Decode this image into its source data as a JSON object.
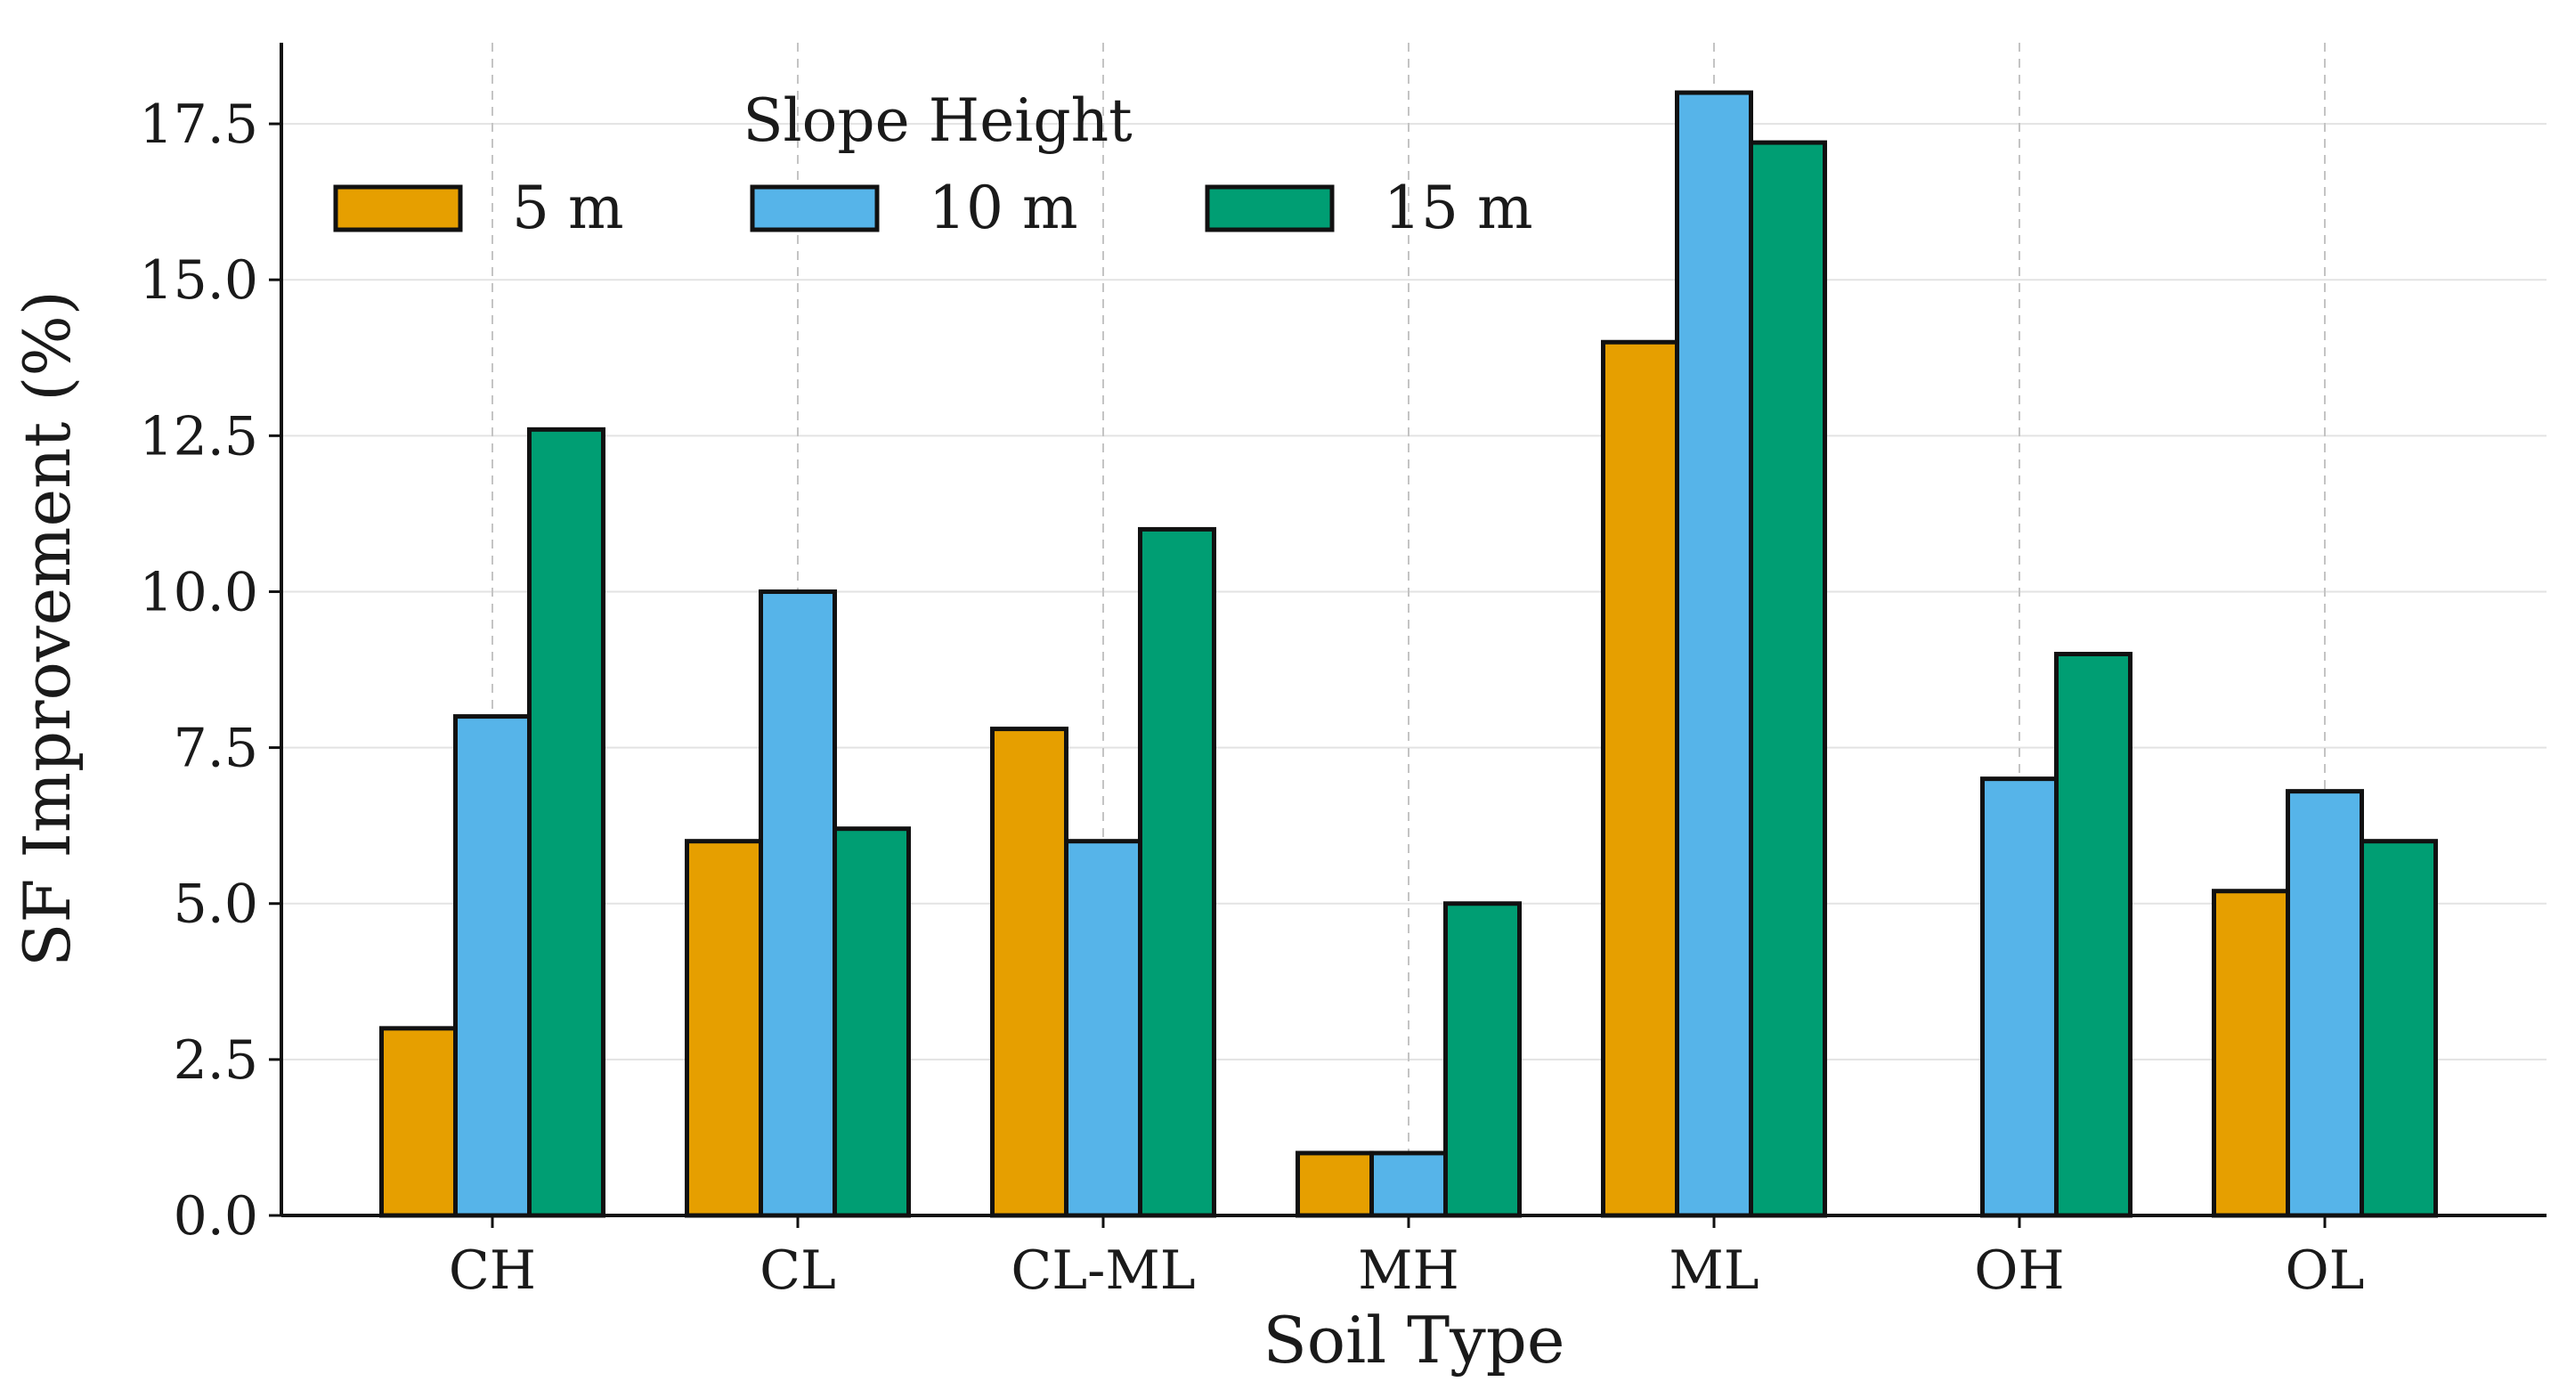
{
  "chart_data": {
    "type": "bar",
    "title": "",
    "xlabel": "Soil Type",
    "ylabel": "SF Improvement (%)",
    "ylim": [
      0,
      18.8
    ],
    "yticks": [
      0,
      2.5,
      5,
      7.5,
      10,
      12.5,
      15,
      17.5
    ],
    "ytick_labels": [
      "0.0",
      "2.5",
      "5.0",
      "7.5",
      "10.0",
      "12.5",
      "15.0",
      "17.5"
    ],
    "grid": true,
    "legend": {
      "title": "Slope Height",
      "placement": "top-left"
    },
    "categories": [
      "CH",
      "CL",
      "CL-ML",
      "MH",
      "ML",
      "OH",
      "OL"
    ],
    "series": [
      {
        "name": "5 m",
        "color": "#E69F00",
        "values": [
          3.0,
          6.0,
          7.8,
          1.0,
          14.0,
          0.0,
          5.2
        ]
      },
      {
        "name": "10 m",
        "color": "#56B4E9",
        "values": [
          8.0,
          10.0,
          6.0,
          1.0,
          18.0,
          7.0,
          6.8
        ]
      },
      {
        "name": "15 m",
        "color": "#009E73",
        "values": [
          12.6,
          6.2,
          11.0,
          5.0,
          17.2,
          9.0,
          6.0
        ]
      }
    ]
  }
}
